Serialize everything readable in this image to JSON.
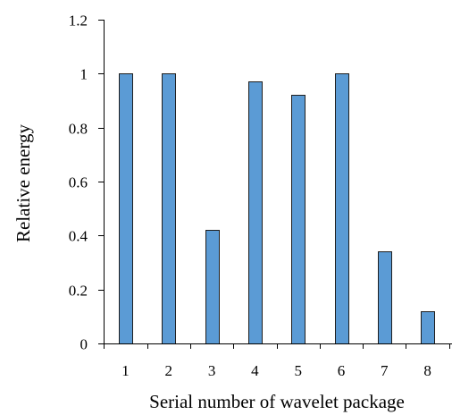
{
  "chart_data": {
    "type": "bar",
    "title": "",
    "xlabel": "Serial number of wavelet package",
    "ylabel": "Relative energy",
    "categories": [
      "1",
      "2",
      "3",
      "4",
      "5",
      "6",
      "7",
      "8"
    ],
    "values": [
      1.0,
      1.0,
      0.42,
      0.97,
      0.92,
      1.0,
      0.34,
      0.12
    ],
    "ylim": [
      0,
      1.2
    ],
    "yticks": [
      "0",
      "0.2",
      "0.4",
      "0.6",
      "0.8",
      "1",
      "1.2"
    ],
    "grid": false,
    "legend": "none",
    "colors": {
      "bar_fill": "#5b9bd5",
      "bar_stroke": "#1f1f1f",
      "axis": "#000000"
    }
  }
}
